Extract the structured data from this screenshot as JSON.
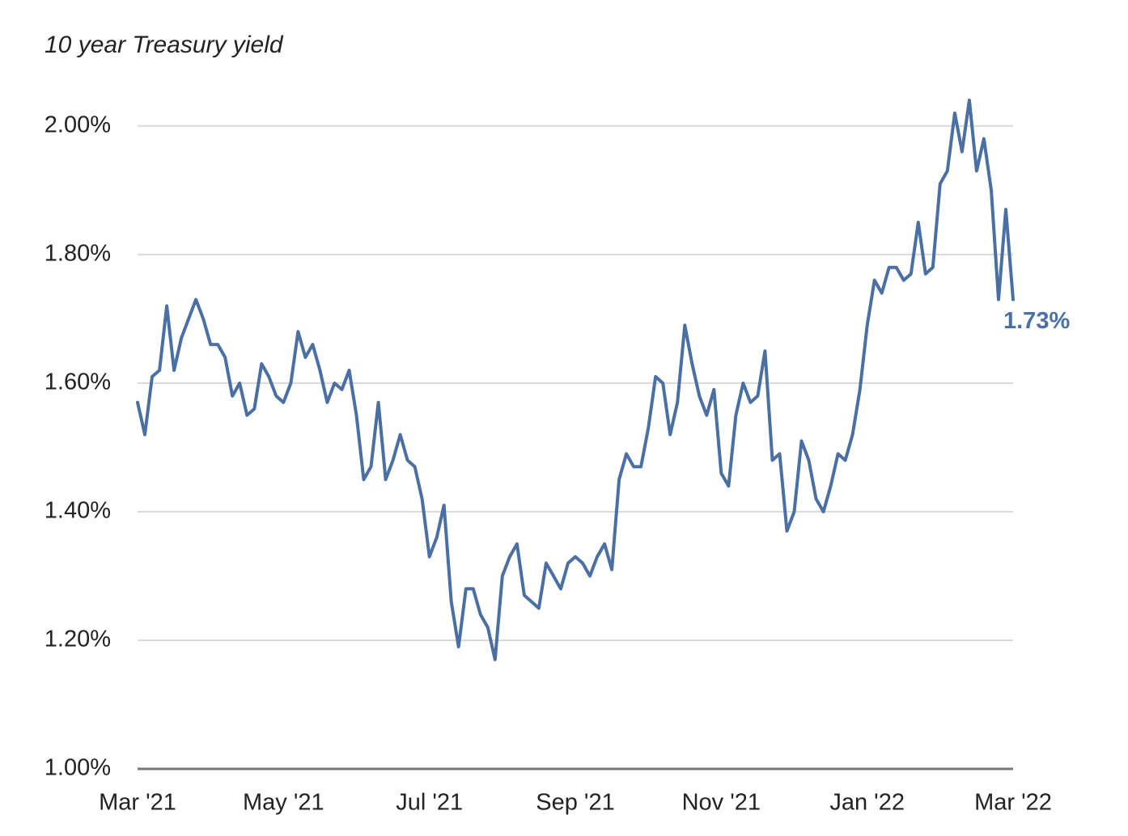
{
  "chart_data": {
    "type": "line",
    "title": "10 year Treasury yield",
    "categories": [
      "Mar '21",
      null,
      null,
      null,
      null,
      null,
      null,
      null,
      null,
      null,
      null,
      null,
      null,
      null,
      null,
      null,
      null,
      null,
      null,
      null,
      "May '21",
      null,
      null,
      null,
      null,
      null,
      null,
      null,
      null,
      null,
      null,
      null,
      null,
      null,
      null,
      null,
      null,
      null,
      null,
      null,
      "Jul '21",
      null,
      null,
      null,
      null,
      null,
      null,
      null,
      null,
      null,
      null,
      null,
      null,
      null,
      null,
      null,
      null,
      null,
      null,
      null,
      "Sep '21",
      null,
      null,
      null,
      null,
      null,
      null,
      null,
      null,
      null,
      null,
      null,
      null,
      null,
      null,
      null,
      null,
      null,
      null,
      null,
      "Nov '21",
      null,
      null,
      null,
      null,
      null,
      null,
      null,
      null,
      null,
      null,
      null,
      null,
      null,
      null,
      null,
      null,
      null,
      null,
      null,
      "Jan '22",
      null,
      null,
      null,
      null,
      null,
      null,
      null,
      null,
      null,
      null,
      null,
      null,
      null,
      null,
      null,
      null,
      null,
      null,
      null,
      "Mar '22"
    ],
    "series": [
      {
        "name": "10 year Treasury yield",
        "color": "#4a6fa5",
        "values": [
          1.57,
          1.52,
          1.61,
          1.62,
          1.72,
          1.62,
          1.67,
          1.7,
          1.73,
          1.7,
          1.66,
          1.66,
          1.64,
          1.58,
          1.6,
          1.55,
          1.56,
          1.63,
          1.61,
          1.58,
          1.57,
          1.6,
          1.68,
          1.64,
          1.66,
          1.62,
          1.57,
          1.6,
          1.59,
          1.62,
          1.55,
          1.45,
          1.47,
          1.57,
          1.45,
          1.48,
          1.52,
          1.48,
          1.47,
          1.42,
          1.33,
          1.36,
          1.41,
          1.26,
          1.19,
          1.28,
          1.28,
          1.24,
          1.22,
          1.17,
          1.3,
          1.33,
          1.35,
          1.27,
          1.26,
          1.25,
          1.32,
          1.3,
          1.28,
          1.32,
          1.33,
          1.32,
          1.3,
          1.33,
          1.35,
          1.31,
          1.45,
          1.49,
          1.47,
          1.47,
          1.53,
          1.61,
          1.6,
          1.52,
          1.57,
          1.69,
          1.63,
          1.58,
          1.55,
          1.59,
          1.46,
          1.44,
          1.55,
          1.6,
          1.57,
          1.58,
          1.65,
          1.48,
          1.49,
          1.37,
          1.4,
          1.51,
          1.48,
          1.42,
          1.4,
          1.44,
          1.49,
          1.48,
          1.52,
          1.59,
          1.69,
          1.76,
          1.74,
          1.78,
          1.78,
          1.76,
          1.77,
          1.85,
          1.77,
          1.78,
          1.91,
          1.93,
          2.02,
          1.96,
          2.04,
          1.93,
          1.98,
          1.9,
          1.73,
          1.87,
          1.73
        ],
        "value_labels": [
          null,
          null,
          null,
          null,
          null,
          null,
          null,
          null,
          null,
          null,
          null,
          null,
          null,
          null,
          null,
          null,
          null,
          null,
          null,
          null,
          null,
          null,
          null,
          null,
          null,
          null,
          null,
          null,
          null,
          null,
          null,
          null,
          null,
          null,
          null,
          null,
          null,
          null,
          null,
          null,
          null,
          null,
          null,
          null,
          null,
          null,
          null,
          null,
          null,
          null,
          null,
          null,
          null,
          null,
          null,
          null,
          null,
          null,
          null,
          null,
          null,
          null,
          null,
          null,
          null,
          null,
          null,
          null,
          null,
          null,
          null,
          null,
          null,
          null,
          null,
          null,
          null,
          null,
          null,
          null,
          null,
          null,
          null,
          null,
          null,
          null,
          null,
          null,
          null,
          null,
          null,
          null,
          null,
          null,
          null,
          null,
          null,
          null,
          null,
          null,
          null,
          null,
          null,
          null,
          null,
          null,
          null,
          null,
          null,
          null,
          null,
          null,
          null,
          null,
          null,
          null,
          null,
          null,
          null,
          null,
          "1.73%"
        ]
      }
    ],
    "ylim": [
      1,
      2.05
    ],
    "yticks": [
      {
        "value": 1,
        "label": "1.00%"
      },
      {
        "value": 1.2,
        "label": "1.20%"
      },
      {
        "value": 1.4,
        "label": "1.40%"
      },
      {
        "value": 1.6,
        "label": "1.60%"
      },
      {
        "value": 1.8,
        "label": "1.80%"
      },
      {
        "value": 2,
        "label": "2.00%"
      }
    ],
    "grid": true
  }
}
